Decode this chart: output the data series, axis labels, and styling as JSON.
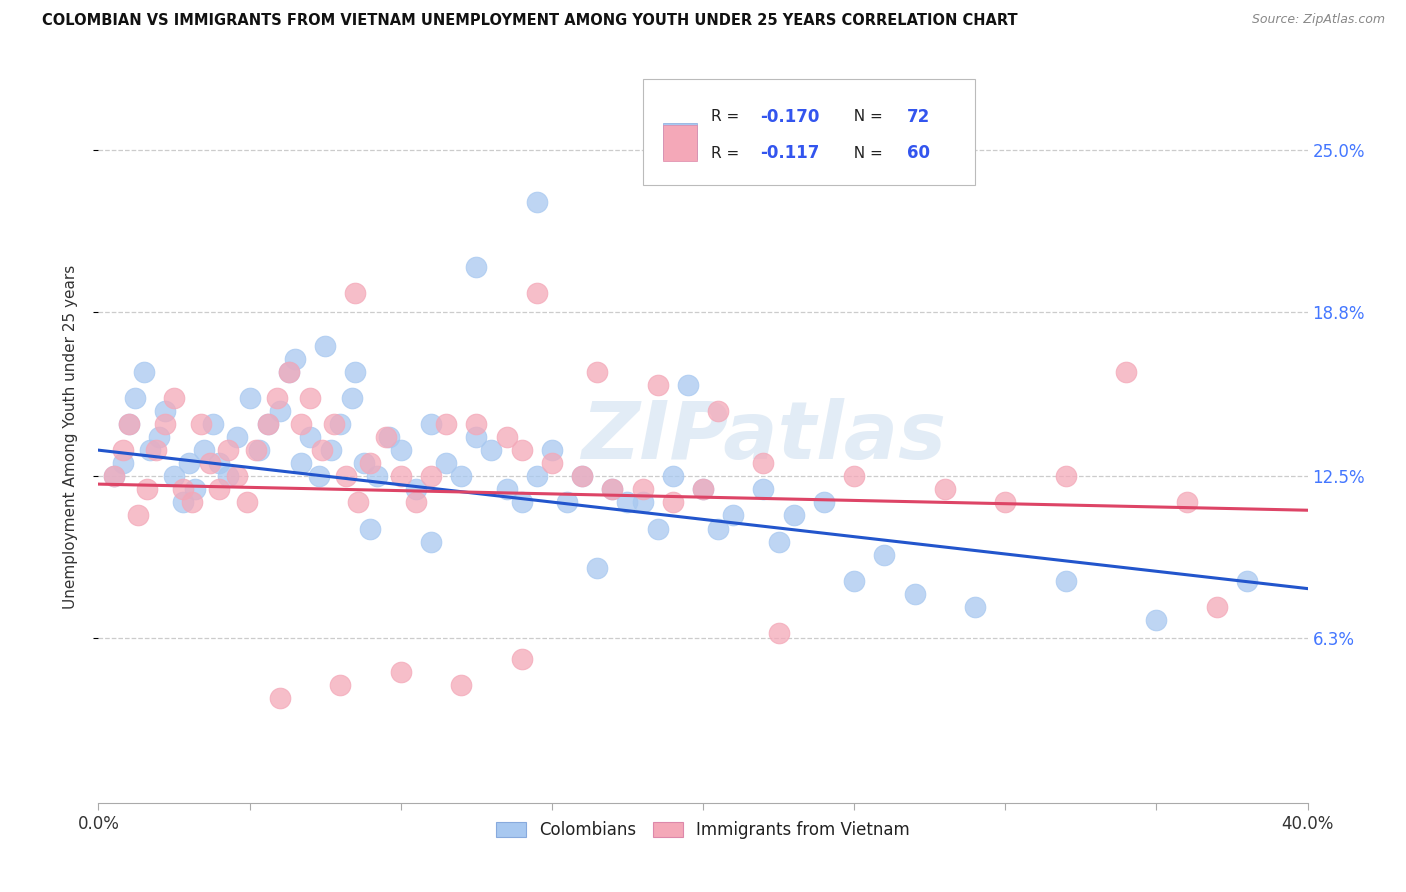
{
  "title": "COLOMBIAN VS IMMIGRANTS FROM VIETNAM UNEMPLOYMENT AMONG YOUTH UNDER 25 YEARS CORRELATION CHART",
  "source": "Source: ZipAtlas.com",
  "ylabel": "Unemployment Among Youth under 25 years",
  "y_ticks": [
    6.3,
    12.5,
    18.8,
    25.0
  ],
  "y_tick_labels": [
    "6.3%",
    "12.5%",
    "18.8%",
    "25.0%"
  ],
  "xlim": [
    0.0,
    40.0
  ],
  "ylim": [
    0.0,
    28.0
  ],
  "watermark": "ZIPatlas",
  "blue_color": "#A8C8F0",
  "pink_color": "#F4A8B8",
  "line_blue": "#2255CC",
  "line_pink": "#DD4466",
  "trendline_blue_y_start": 13.5,
  "trendline_blue_y_end": 8.2,
  "trendline_pink_y_start": 12.2,
  "trendline_pink_y_end": 11.2,
  "grid_color": "#CCCCCC",
  "background_color": "#FFFFFF",
  "legend_labels": [
    "Colombians",
    "Immigrants from Vietnam"
  ],
  "legend_r_blue": "-0.170",
  "legend_n_blue": "72",
  "legend_r_pink": "-0.117",
  "legend_n_pink": "60",
  "blue_scatter_x": [
    0.5,
    0.8,
    1.0,
    1.2,
    1.5,
    1.7,
    2.0,
    2.2,
    2.5,
    2.8,
    3.0,
    3.2,
    3.5,
    3.8,
    4.0,
    4.3,
    4.6,
    5.0,
    5.3,
    5.6,
    6.0,
    6.3,
    6.7,
    7.0,
    7.3,
    7.7,
    8.0,
    8.4,
    8.8,
    9.2,
    9.6,
    10.0,
    10.5,
    11.0,
    11.5,
    12.0,
    12.5,
    13.0,
    13.5,
    14.0,
    14.5,
    15.0,
    15.5,
    16.0,
    17.0,
    18.0,
    19.0,
    20.0,
    21.0,
    22.0,
    17.5,
    18.5,
    20.5,
    22.5,
    23.0,
    24.0,
    25.0,
    26.0,
    27.0,
    29.0,
    32.0,
    35.0,
    38.0,
    16.5,
    11.0,
    9.0,
    8.5,
    12.5,
    14.5,
    7.5,
    19.5,
    6.5
  ],
  "blue_scatter_y": [
    12.5,
    13.0,
    14.5,
    15.5,
    16.5,
    13.5,
    14.0,
    15.0,
    12.5,
    11.5,
    13.0,
    12.0,
    13.5,
    14.5,
    13.0,
    12.5,
    14.0,
    15.5,
    13.5,
    14.5,
    15.0,
    16.5,
    13.0,
    14.0,
    12.5,
    13.5,
    14.5,
    15.5,
    13.0,
    12.5,
    14.0,
    13.5,
    12.0,
    14.5,
    13.0,
    12.5,
    14.0,
    13.5,
    12.0,
    11.5,
    12.5,
    13.5,
    11.5,
    12.5,
    12.0,
    11.5,
    12.5,
    12.0,
    11.0,
    12.0,
    11.5,
    10.5,
    10.5,
    10.0,
    11.0,
    11.5,
    8.5,
    9.5,
    8.0,
    7.5,
    8.5,
    7.0,
    8.5,
    9.0,
    10.0,
    10.5,
    16.5,
    20.5,
    23.0,
    17.5,
    16.0,
    17.0
  ],
  "pink_scatter_x": [
    0.5,
    0.8,
    1.0,
    1.3,
    1.6,
    1.9,
    2.2,
    2.5,
    2.8,
    3.1,
    3.4,
    3.7,
    4.0,
    4.3,
    4.6,
    4.9,
    5.2,
    5.6,
    5.9,
    6.3,
    6.7,
    7.0,
    7.4,
    7.8,
    8.2,
    8.6,
    9.0,
    9.5,
    10.0,
    10.5,
    11.0,
    11.5,
    12.5,
    13.5,
    14.0,
    15.0,
    16.0,
    17.0,
    18.0,
    19.0,
    20.0,
    22.0,
    25.0,
    28.0,
    30.0,
    32.0,
    34.0,
    36.0,
    37.0,
    8.5,
    14.5,
    16.5,
    18.5,
    20.5,
    22.5,
    14.0,
    8.0,
    10.0,
    12.0,
    6.0
  ],
  "pink_scatter_y": [
    12.5,
    13.5,
    14.5,
    11.0,
    12.0,
    13.5,
    14.5,
    15.5,
    12.0,
    11.5,
    14.5,
    13.0,
    12.0,
    13.5,
    12.5,
    11.5,
    13.5,
    14.5,
    15.5,
    16.5,
    14.5,
    15.5,
    13.5,
    14.5,
    12.5,
    11.5,
    13.0,
    14.0,
    12.5,
    11.5,
    12.5,
    14.5,
    14.5,
    14.0,
    13.5,
    13.0,
    12.5,
    12.0,
    12.0,
    11.5,
    12.0,
    13.0,
    12.5,
    12.0,
    11.5,
    12.5,
    16.5,
    11.5,
    7.5,
    19.5,
    19.5,
    16.5,
    16.0,
    15.0,
    6.5,
    5.5,
    4.5,
    5.0,
    4.5,
    4.0
  ]
}
